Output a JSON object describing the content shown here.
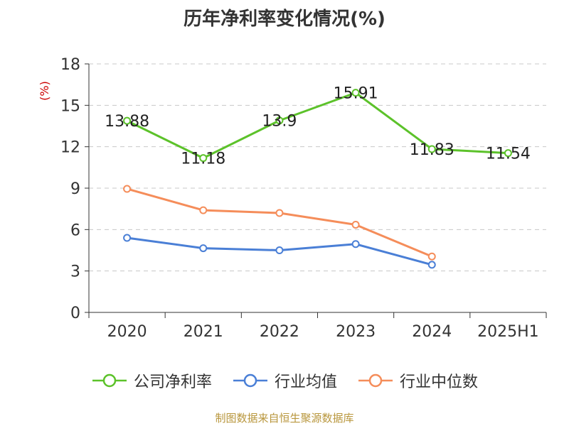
{
  "title": "历年净利率变化情况(%)",
  "source": "制图数据来自恒生聚源数据库",
  "chart_data": {
    "type": "line",
    "title": "历年净利率变化情况(%)",
    "ylabel": "(%)",
    "xlabel": "",
    "categories": [
      "2020",
      "2021",
      "2022",
      "2023",
      "2024",
      "2025H1"
    ],
    "ylim": [
      0,
      18
    ],
    "yticks": [
      0,
      3,
      6,
      9,
      12,
      15,
      18
    ],
    "grid": true,
    "legend_position": "bottom",
    "series": [
      {
        "name": "公司净利率",
        "color": "#5cc22a",
        "values": [
          13.88,
          11.18,
          13.9,
          15.91,
          11.83,
          11.54
        ],
        "show_labels": true
      },
      {
        "name": "行业均值",
        "color": "#4a7fd6",
        "values": [
          5.4,
          4.65,
          4.5,
          4.95,
          3.45,
          null
        ],
        "show_labels": false
      },
      {
        "name": "行业中位数",
        "color": "#f58d5a",
        "values": [
          8.95,
          7.4,
          7.2,
          6.35,
          4.05,
          null
        ],
        "show_labels": false
      }
    ]
  }
}
